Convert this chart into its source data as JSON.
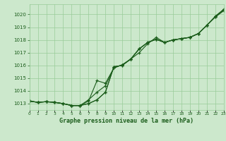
{
  "title": "Graphe pression niveau de la mer (hPa)",
  "xlabel_hours": [
    0,
    1,
    2,
    3,
    4,
    5,
    6,
    7,
    8,
    9,
    10,
    11,
    12,
    13,
    14,
    15,
    16,
    17,
    18,
    19,
    20,
    21,
    22,
    23
  ],
  "ylim": [
    1012.5,
    1020.8
  ],
  "yticks": [
    1013,
    1014,
    1015,
    1016,
    1017,
    1018,
    1019,
    1020
  ],
  "background_color": "#cce8cc",
  "grid_color": "#99cc99",
  "line_color": "#1a5c1a",
  "line1": [
    1013.2,
    1013.1,
    1013.15,
    1013.1,
    1013.0,
    1012.85,
    1012.85,
    1013.0,
    1013.3,
    1013.9,
    1015.9,
    1016.0,
    1016.5,
    1017.3,
    1017.8,
    1018.05,
    1017.8,
    1018.0,
    1018.1,
    1018.2,
    1018.5,
    1019.15,
    1019.8,
    1020.3
  ],
  "line2": [
    1013.2,
    1013.1,
    1013.15,
    1013.1,
    1013.0,
    1012.85,
    1012.85,
    1013.0,
    1013.3,
    1013.9,
    1015.9,
    1016.0,
    1016.5,
    1017.3,
    1017.8,
    1018.05,
    1017.8,
    1018.0,
    1018.1,
    1018.2,
    1018.5,
    1019.15,
    1019.85,
    1020.4
  ],
  "line3": [
    1013.2,
    1013.1,
    1013.15,
    1013.1,
    1013.0,
    1012.85,
    1012.85,
    1013.2,
    1014.8,
    1014.6,
    1015.8,
    1016.05,
    1016.5,
    1017.0,
    1017.7,
    1018.2,
    1017.8,
    1018.0,
    1018.1,
    1018.2,
    1018.5,
    1019.15,
    1019.85,
    1020.4
  ],
  "line4": [
    1013.2,
    1013.1,
    1013.15,
    1013.1,
    1013.0,
    1012.85,
    1012.85,
    1013.3,
    1013.9,
    1014.4,
    1015.8,
    1016.05,
    1016.5,
    1017.3,
    1017.8,
    1018.05,
    1017.8,
    1018.0,
    1018.1,
    1018.2,
    1018.5,
    1019.15,
    1019.8,
    1020.3
  ]
}
